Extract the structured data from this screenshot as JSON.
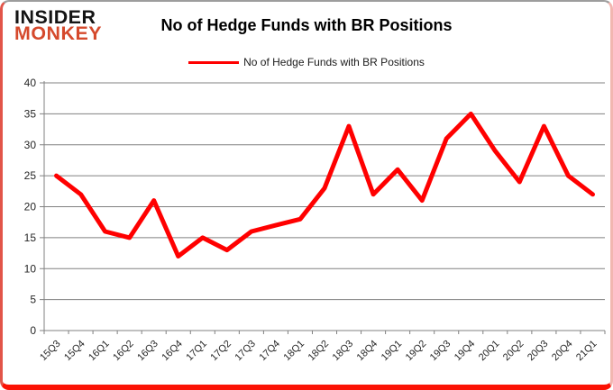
{
  "logo": {
    "line1": "INSIDER",
    "line2": "MONKEY"
  },
  "header": {
    "title": "No of Hedge Funds with BR Positions"
  },
  "legend": {
    "label": "No of Hedge Funds with BR Positions",
    "line_color": "#ff0000"
  },
  "colors": {
    "series_red": "#ff0000",
    "grid": "#808080",
    "axis": "#808080",
    "tick_label": "#262626",
    "logo_red": "#d5492c",
    "frame_bottom_red": "#fb1204",
    "frame_left_red": "#e25549"
  },
  "chart_data": {
    "type": "line",
    "title": "No of Hedge Funds with BR Positions",
    "categories": [
      "15Q3",
      "15Q4",
      "16Q1",
      "16Q2",
      "16Q3",
      "16Q4",
      "17Q1",
      "17Q2",
      "17Q3",
      "17Q4",
      "18Q1",
      "18Q2",
      "18Q3",
      "18Q4",
      "19Q1",
      "19Q2",
      "19Q3",
      "19Q4",
      "20Q1",
      "20Q2",
      "20Q3",
      "20Q4",
      "21Q1"
    ],
    "series": [
      {
        "name": "No of Hedge Funds with BR Positions",
        "color": "#ff0000",
        "values": [
          25,
          22,
          16,
          15,
          21,
          12,
          15,
          13,
          16,
          17,
          18,
          23,
          33,
          22,
          26,
          21,
          31,
          35,
          29,
          24,
          33,
          25,
          22
        ]
      }
    ],
    "xlabel": "",
    "ylabel": "",
    "ylim": [
      0,
      40
    ],
    "ytick_step": 5,
    "grid": true,
    "legend_position": "top"
  }
}
